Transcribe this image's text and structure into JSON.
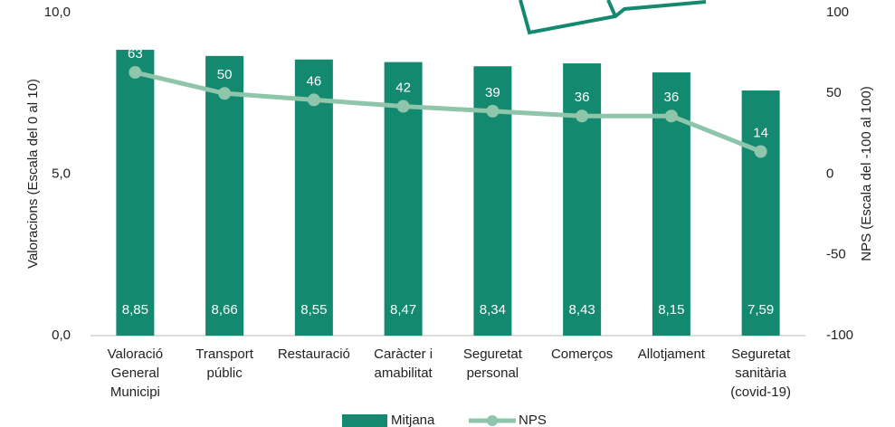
{
  "chart_data": {
    "type": "bar_line",
    "categories": [
      [
        "Valoració",
        "General",
        "Municipi"
      ],
      [
        "Transport",
        "públic"
      ],
      [
        "Restauració"
      ],
      [
        "Caràcter i",
        "amabilitat"
      ],
      [
        "Seguretat",
        "personal"
      ],
      [
        "Comerços"
      ],
      [
        "Allotjament"
      ],
      [
        "Seguretat",
        "sanitària",
        "(covid-19)"
      ]
    ],
    "series": [
      {
        "name": "Mitjana",
        "color": "#138a6f",
        "values": [
          8.85,
          8.66,
          8.55,
          8.47,
          8.34,
          8.43,
          8.15,
          7.59
        ],
        "value_labels": [
          "8,85",
          "8,66",
          "8,55",
          "8,47",
          "8,34",
          "8,43",
          "8,15",
          "7,59"
        ]
      },
      {
        "name": "NPS",
        "color": "#8ec5ab",
        "axis": "y2",
        "values": [
          63,
          50,
          46,
          42,
          39,
          36,
          36,
          14
        ]
      }
    ],
    "ylabel": "Valoracions (Escala del 0 al 10)",
    "y2label": "NPS (Escala del -100 al 100)",
    "ylim": [
      0,
      10
    ],
    "yticks": [
      {
        "value": 0,
        "label": "0,0"
      },
      {
        "value": 5,
        "label": "5,0"
      },
      {
        "value": 10,
        "label": "10,0"
      }
    ],
    "y2lim": [
      -100,
      100
    ],
    "y2ticks": [
      -100,
      -50,
      0,
      50,
      100
    ],
    "legend": "bottom"
  }
}
